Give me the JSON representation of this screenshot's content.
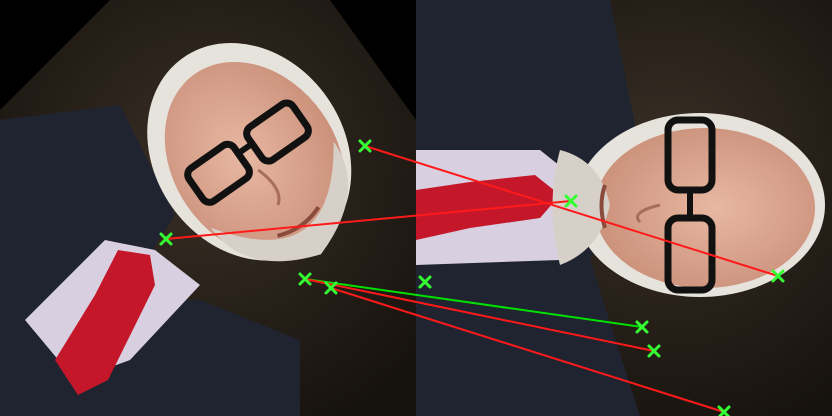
{
  "figure": {
    "kind": "keypoint-matching-visualization",
    "panels": [
      {
        "name": "left",
        "description_role": "rotated-portrait"
      },
      {
        "name": "right",
        "description_role": "rotated-portrait"
      }
    ]
  },
  "matches": [
    {
      "id": 1,
      "status": "outlier"
    },
    {
      "id": 2,
      "status": "outlier"
    },
    {
      "id": 3,
      "status": "inlier"
    },
    {
      "id": 4,
      "status": "outlier"
    },
    {
      "id": 5,
      "status": "outlier"
    }
  ],
  "colors": {
    "inlier": "#00e000",
    "outlier": "#ff1a1a",
    "keypoint": "#33ff33",
    "background_left": "#1c1712",
    "suit": "#1f2430",
    "shirt": "#d8cfe0",
    "tie": "#c4182a",
    "skin": "#d9a08a",
    "hair": "#e6e2dc",
    "glasses": "#111111"
  }
}
